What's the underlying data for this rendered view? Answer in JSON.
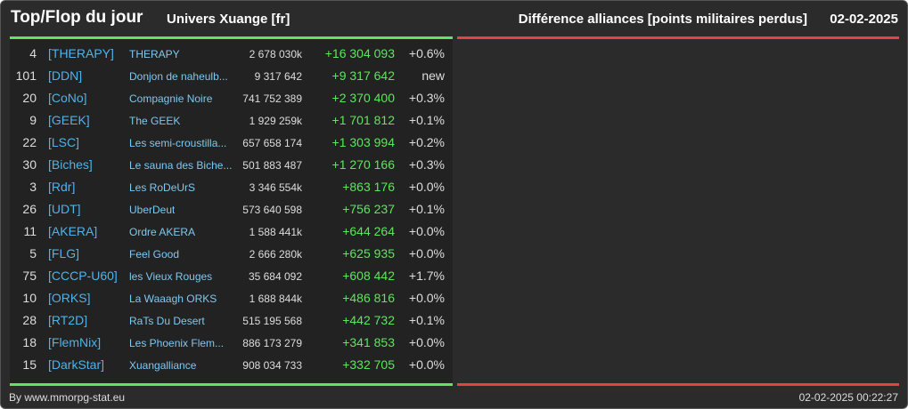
{
  "header": {
    "title": "Top/Flop du jour",
    "universe": "Univers Xuange [fr]",
    "subtitle": "Différence alliances [points militaires perdus]",
    "date": "02-02-2025"
  },
  "colors": {
    "accent_positive": "#5fe55f",
    "accent_negative": "#e0463f",
    "link": "#4fb3ea",
    "background": "#2b2b2b"
  },
  "rows": [
    {
      "rank": "4",
      "tag": "[THERAPY]",
      "name": "THERAPY",
      "points": "2 678 030k",
      "diff": "+16 304 093",
      "pct": "+0.6%"
    },
    {
      "rank": "101",
      "tag": "[DDN]",
      "name": "Donjon de naheulb...",
      "points": "9 317 642",
      "diff": "+9 317 642",
      "pct": "new"
    },
    {
      "rank": "20",
      "tag": "[CoNo]",
      "name": "Compagnie Noire",
      "points": "741 752 389",
      "diff": "+2 370 400",
      "pct": "+0.3%"
    },
    {
      "rank": "9",
      "tag": "[GEEK]",
      "name": "The GEEK",
      "points": "1 929 259k",
      "diff": "+1 701 812",
      "pct": "+0.1%"
    },
    {
      "rank": "22",
      "tag": "[LSC]",
      "name": "Les semi-croustilla...",
      "points": "657 658 174",
      "diff": "+1 303 994",
      "pct": "+0.2%"
    },
    {
      "rank": "30",
      "tag": "[Biches]",
      "name": "Le sauna des Biche...",
      "points": "501 883 487",
      "diff": "+1 270 166",
      "pct": "+0.3%"
    },
    {
      "rank": "3",
      "tag": "[Rdr]",
      "name": "Les RoDeUrS",
      "points": "3 346 554k",
      "diff": "+863 176",
      "pct": "+0.0%"
    },
    {
      "rank": "26",
      "tag": "[UDT]",
      "name": "UberDeut",
      "points": "573 640 598",
      "diff": "+756 237",
      "pct": "+0.1%"
    },
    {
      "rank": "11",
      "tag": "[AKERA]",
      "name": "Ordre AKERA",
      "points": "1 588 441k",
      "diff": "+644 264",
      "pct": "+0.0%"
    },
    {
      "rank": "5",
      "tag": "[FLG]",
      "name": "Feel Good",
      "points": "2 666 280k",
      "diff": "+625 935",
      "pct": "+0.0%"
    },
    {
      "rank": "75",
      "tag": "[CCCP-U60]",
      "name": "les Vieux Rouges",
      "points": "35 684 092",
      "diff": "+608 442",
      "pct": "+1.7%"
    },
    {
      "rank": "10",
      "tag": "[ORKS]",
      "name": "La Waaagh ORKS",
      "points": "1 688 844k",
      "diff": "+486 816",
      "pct": "+0.0%"
    },
    {
      "rank": "28",
      "tag": "[RT2D]",
      "name": "RaTs Du Desert",
      "points": "515 195 568",
      "diff": "+442 732",
      "pct": "+0.1%"
    },
    {
      "rank": "18",
      "tag": "[FlemNix]",
      "name": "Les Phoenix Flem...",
      "points": "886 173 279",
      "diff": "+341 853",
      "pct": "+0.0%"
    },
    {
      "rank": "15",
      "tag": "[DarkStar]",
      "name": "Xuangalliance",
      "points": "908 034 733",
      "diff": "+332 705",
      "pct": "+0.0%"
    }
  ],
  "footer": {
    "credit": "By www.mmorpg-stat.eu",
    "timestamp": "02-02-2025 00:22:27"
  }
}
